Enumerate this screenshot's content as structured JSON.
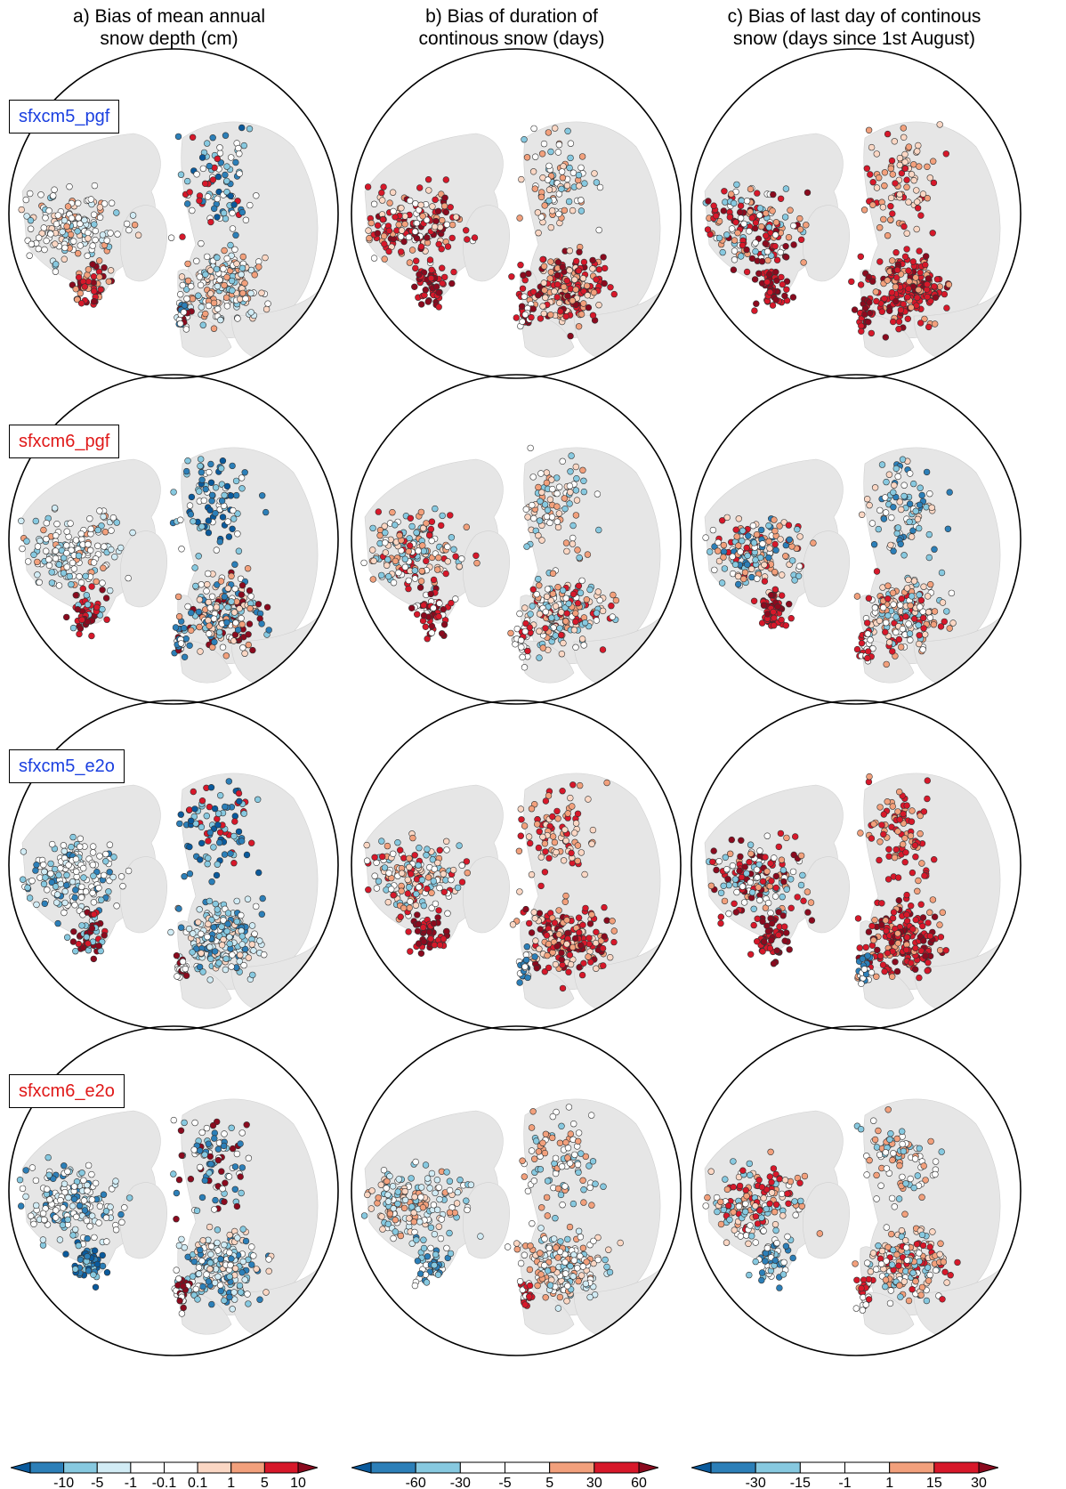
{
  "columns": [
    {
      "title_line1": "a) Bias of mean annual",
      "title_line2": "snow depth (cm)"
    },
    {
      "title_line1": "b) Bias of duration of",
      "title_line2": "continous snow (days)"
    },
    {
      "title_line1": "c) Bias of last day of continous",
      "title_line2": "snow (days since 1st August)"
    }
  ],
  "rows": [
    {
      "label": "sfxcm5_pgf",
      "color": "#1a3fe0"
    },
    {
      "label": "sfxcm6_pgf",
      "color": "#e01818"
    },
    {
      "label": "sfxcm5_e2o",
      "color": "#1a3fe0"
    },
    {
      "label": "sfxcm6_e2o",
      "color": "#e01818"
    }
  ],
  "colorbars": [
    {
      "labels": [
        "-10",
        "-5",
        "-1",
        "-0.1",
        "0.1",
        "1",
        "5",
        "10"
      ]
    },
    {
      "labels": [
        "-60",
        "-30",
        "-5",
        "5",
        "30",
        "60"
      ]
    },
    {
      "labels": [
        "-30",
        "-15",
        "-1",
        "1",
        "15",
        "30"
      ]
    }
  ],
  "palette": {
    "dark_blue": "#0a5a9c",
    "mid_blue": "#2c7fb8",
    "light_blue": "#87c9e0",
    "pale_blue": "#d2ecf5",
    "white": "#ffffff",
    "pale_red": "#fbd7c4",
    "light_red": "#f2a07c",
    "red": "#d7182a",
    "dark_red": "#8b0a1e",
    "land": "#e6e6e6"
  }
}
